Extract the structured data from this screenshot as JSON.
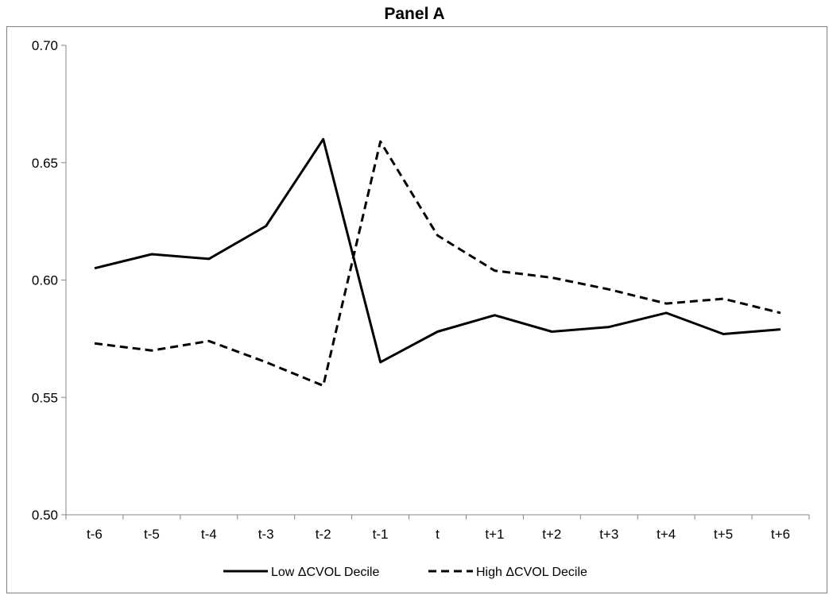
{
  "chart_data": {
    "type": "line",
    "title": "Panel A",
    "xlabel": "",
    "ylabel": "",
    "categories": [
      "t-6",
      "t-5",
      "t-4",
      "t-3",
      "t-2",
      "t-1",
      "t",
      "t+1",
      "t+2",
      "t+3",
      "t+4",
      "t+5",
      "t+6"
    ],
    "ylim": [
      0.5,
      0.7
    ],
    "yticks": [
      "0.50",
      "0.55",
      "0.60",
      "0.65",
      "0.70"
    ],
    "grid": false,
    "legend_position": "bottom",
    "series": [
      {
        "name": "Low  ΔCVOL Decile",
        "style": "solid",
        "color": "#000000",
        "values": [
          0.605,
          0.611,
          0.609,
          0.623,
          0.66,
          0.565,
          0.578,
          0.585,
          0.578,
          0.58,
          0.586,
          0.577,
          0.579
        ]
      },
      {
        "name": "High  ΔCVOL Decile",
        "style": "dashed",
        "color": "#000000",
        "values": [
          0.573,
          0.57,
          0.574,
          0.565,
          0.555,
          0.659,
          0.619,
          0.604,
          0.601,
          0.596,
          0.59,
          0.592,
          0.586
        ]
      }
    ]
  }
}
